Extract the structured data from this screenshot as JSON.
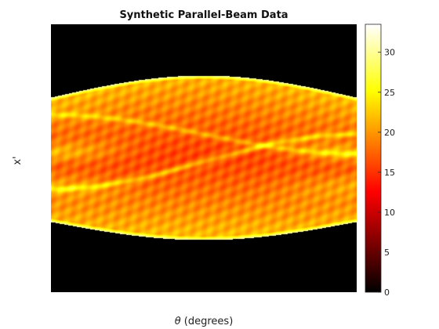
{
  "chart_data": {
    "type": "heatmap",
    "title": "Synthetic Parallel-Beam Data",
    "xlabel_symbol": "θ",
    "xlabel_text": " (degrees)",
    "ylabel": "x'",
    "colormap": "hot",
    "colorbar": {
      "range": [
        0,
        33.5
      ],
      "ticks": [
        0,
        5,
        10,
        15,
        20,
        25,
        30
      ],
      "tick_labels": [
        "0",
        "5",
        "10",
        "15",
        "20",
        "25",
        "30"
      ]
    },
    "data_description": {
      "background_value": 0,
      "band_center_value": 16,
      "band_side_value": 22,
      "peak_value": 33
    }
  }
}
